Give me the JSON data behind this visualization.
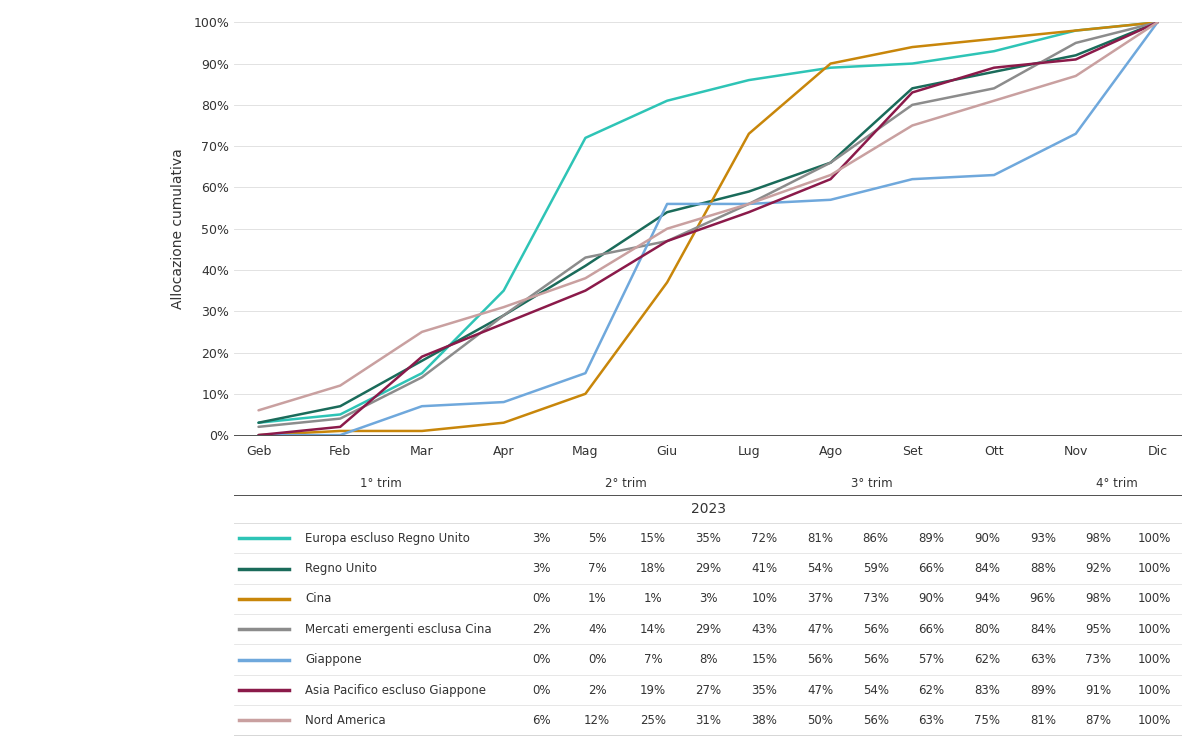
{
  "months": [
    "Geb",
    "Feb",
    "Mar",
    "Apr",
    "Mag",
    "Giu",
    "Lug",
    "Ago",
    "Set",
    "Ott",
    "Nov",
    "Dic"
  ],
  "quarter_positions": [
    {
      "text": "1° trim",
      "x": 1.5
    },
    {
      "text": "2° trim",
      "x": 4.5
    },
    {
      "text": "3° trim",
      "x": 7.5
    },
    {
      "text": "4° trim",
      "x": 10.5
    }
  ],
  "year_label": "2023",
  "ylabel": "Allocazione cumulativa",
  "series": [
    {
      "label": "Europa escluso Regno Unito",
      "color": "#2EC4B6",
      "linewidth": 1.8,
      "values": [
        3,
        5,
        15,
        35,
        72,
        81,
        86,
        89,
        90,
        93,
        98,
        100
      ]
    },
    {
      "label": "Regno Unito",
      "color": "#1A6B5A",
      "linewidth": 1.8,
      "values": [
        3,
        7,
        18,
        29,
        41,
        54,
        59,
        66,
        84,
        88,
        92,
        100
      ]
    },
    {
      "label": "Cina",
      "color": "#C8860A",
      "linewidth": 1.8,
      "values": [
        0,
        1,
        1,
        3,
        10,
        37,
        73,
        90,
        94,
        96,
        98,
        100
      ]
    },
    {
      "label": "Mercati emergenti esclusa Cina",
      "color": "#8C8C8C",
      "linewidth": 1.8,
      "values": [
        2,
        4,
        14,
        29,
        43,
        47,
        56,
        66,
        80,
        84,
        95,
        100
      ]
    },
    {
      "label": "Giappone",
      "color": "#6FA8DC",
      "linewidth": 1.8,
      "values": [
        0,
        0,
        7,
        8,
        15,
        56,
        56,
        57,
        62,
        63,
        73,
        100
      ]
    },
    {
      "label": "Asia Pacifico escluso Giappone",
      "color": "#8B1A4A",
      "linewidth": 1.8,
      "values": [
        0,
        2,
        19,
        27,
        35,
        47,
        54,
        62,
        83,
        89,
        91,
        100
      ]
    },
    {
      "label": "Nord America",
      "color": "#C9A0A0",
      "linewidth": 1.8,
      "values": [
        6,
        12,
        25,
        31,
        38,
        50,
        56,
        63,
        75,
        81,
        87,
        100
      ]
    }
  ],
  "table_values": [
    [
      "3%",
      "5%",
      "15%",
      "35%",
      "72%",
      "81%",
      "86%",
      "89%",
      "90%",
      "93%",
      "98%",
      "100%"
    ],
    [
      "3%",
      "7%",
      "18%",
      "29%",
      "41%",
      "54%",
      "59%",
      "66%",
      "84%",
      "88%",
      "92%",
      "100%"
    ],
    [
      "0%",
      "1%",
      "1%",
      "3%",
      "10%",
      "37%",
      "73%",
      "90%",
      "94%",
      "96%",
      "98%",
      "100%"
    ],
    [
      "2%",
      "4%",
      "14%",
      "29%",
      "43%",
      "47%",
      "56%",
      "66%",
      "80%",
      "84%",
      "95%",
      "100%"
    ],
    [
      "0%",
      "0%",
      "7%",
      "8%",
      "15%",
      "56%",
      "56%",
      "57%",
      "62%",
      "63%",
      "73%",
      "100%"
    ],
    [
      "0%",
      "2%",
      "19%",
      "27%",
      "35%",
      "47%",
      "54%",
      "62%",
      "83%",
      "89%",
      "91%",
      "100%"
    ],
    [
      "6%",
      "12%",
      "25%",
      "31%",
      "38%",
      "50%",
      "56%",
      "63%",
      "75%",
      "81%",
      "87%",
      "100%"
    ]
  ],
  "bg": "#FFFFFF",
  "line_sep_color": "#333333",
  "line_grid_color": "#DDDDDD",
  "text_color": "#333333",
  "yticks": [
    0,
    10,
    20,
    30,
    40,
    50,
    60,
    70,
    80,
    90,
    100
  ],
  "font_size_tick": 9,
  "font_size_label": 9,
  "font_size_table": 8.5
}
